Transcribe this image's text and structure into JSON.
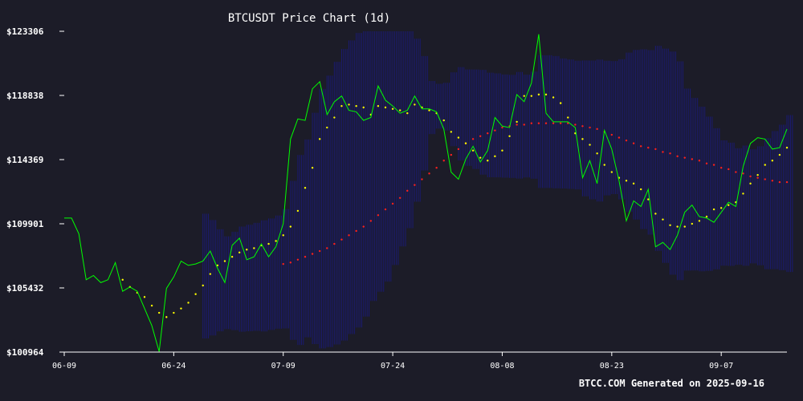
{
  "chart_data": {
    "type": "line",
    "title": "BTCUSDT Price Chart (1d)",
    "footer": "BTCC.COM Generated on 2025-09-16",
    "xlabel": "",
    "ylabel": "",
    "x_ticks": [
      "06-09",
      "06-24",
      "07-09",
      "07-24",
      "08-08",
      "08-23",
      "09-07"
    ],
    "y_ticks": [
      "$123306",
      "$118838",
      "$114369",
      "$109901",
      "$105432",
      "$100964"
    ],
    "y_tick_values": [
      123306,
      118838,
      114369,
      109901,
      105432,
      100964
    ],
    "ylim": [
      100964,
      123306
    ],
    "x_start": "2025-06-09",
    "x_end": "2025-09-16",
    "legend": "none",
    "grid": false,
    "colors": {
      "background": "#1c1c28",
      "price": "#00ff00",
      "sar": "#ffff00",
      "ma": "#ff2020",
      "band": "#1a1a8c",
      "axis": "#ffffff"
    },
    "series": [
      {
        "values": [
          110300,
          110300,
          109200,
          106000,
          106300,
          105800,
          106000,
          107200,
          105200,
          105500,
          105200,
          104000,
          102800,
          101000,
          105400,
          106200,
          107300,
          107000,
          107100,
          107300,
          108000,
          106800,
          105800,
          108400,
          108900,
          107400,
          107600,
          108500,
          107600,
          108300,
          109900,
          115800,
          117200,
          117100,
          119300,
          119800,
          117500,
          118400,
          118800,
          117800,
          117700,
          117100,
          117300,
          119500,
          118500,
          118100,
          117600,
          117800,
          118800,
          117900,
          117900,
          117700,
          116500,
          113500,
          113000,
          114400,
          115300,
          114200,
          115000,
          117300,
          116700,
          116600,
          118900,
          118400,
          119700,
          123100,
          117600,
          117000,
          117000,
          117000,
          116600,
          113100,
          114300,
          112700,
          116400,
          115100,
          112900,
          110100,
          111500,
          111100,
          112300,
          108300,
          108600,
          108100,
          109100,
          110700,
          111200,
          110400,
          110300,
          110000,
          110700,
          111400,
          111100,
          113900,
          115500,
          115900,
          115800,
          115100,
          115200,
          116500
        ]
      },
      {
        "values": [
          null,
          null,
          null,
          null,
          null,
          null,
          null,
          null,
          106000,
          105500,
          105100,
          104800,
          104200,
          103700,
          103400,
          103700,
          104000,
          104400,
          105000,
          105600,
          106400,
          107000,
          107300,
          107600,
          107900,
          108100,
          108200,
          108400,
          108500,
          108700,
          109100,
          109700,
          110800,
          112400,
          113800,
          115800,
          116600,
          117300,
          118100,
          118200,
          118100,
          118000,
          117500,
          118100,
          118000,
          117900,
          117800,
          117600,
          118200,
          118000,
          117800,
          117600,
          117100,
          116300,
          115900,
          115500,
          115000,
          114500,
          114300,
          114600,
          115000,
          116000,
          117000,
          118800,
          118800,
          118900,
          118900,
          118700,
          118300,
          117300,
          116200,
          115800,
          115400,
          114800,
          114000,
          113500,
          113100,
          112900,
          112700,
          112300,
          111600,
          110600,
          110200,
          109800,
          109700,
          109700,
          109900,
          110100,
          110400,
          110900,
          111000,
          111200,
          111400,
          112000,
          112700,
          113300,
          114000,
          114300,
          114700,
          115200
        ]
      },
      {
        "values": [
          null,
          null,
          null,
          null,
          null,
          null,
          null,
          null,
          null,
          null,
          null,
          null,
          null,
          null,
          null,
          null,
          null,
          null,
          null,
          null,
          null,
          null,
          null,
          null,
          null,
          null,
          null,
          null,
          null,
          null,
          107100,
          107200,
          107400,
          107600,
          107800,
          108000,
          108200,
          108500,
          108800,
          109100,
          109400,
          109700,
          110100,
          110500,
          110900,
          111300,
          111700,
          112200,
          112600,
          113000,
          113400,
          113800,
          114300,
          114700,
          115100,
          115500,
          115800,
          116000,
          116200,
          116400,
          116600,
          116700,
          116800,
          116800,
          116900,
          116900,
          116900,
          116900,
          116900,
          116900,
          116800,
          116700,
          116600,
          116500,
          116300,
          116100,
          115900,
          115700,
          115500,
          115300,
          115200,
          115100,
          114900,
          114800,
          114600,
          114500,
          114400,
          114300,
          114100,
          114000,
          113800,
          113700,
          113500,
          113400,
          113200,
          113100,
          113000,
          112900,
          112800,
          112800
        ]
      }
    ]
  }
}
